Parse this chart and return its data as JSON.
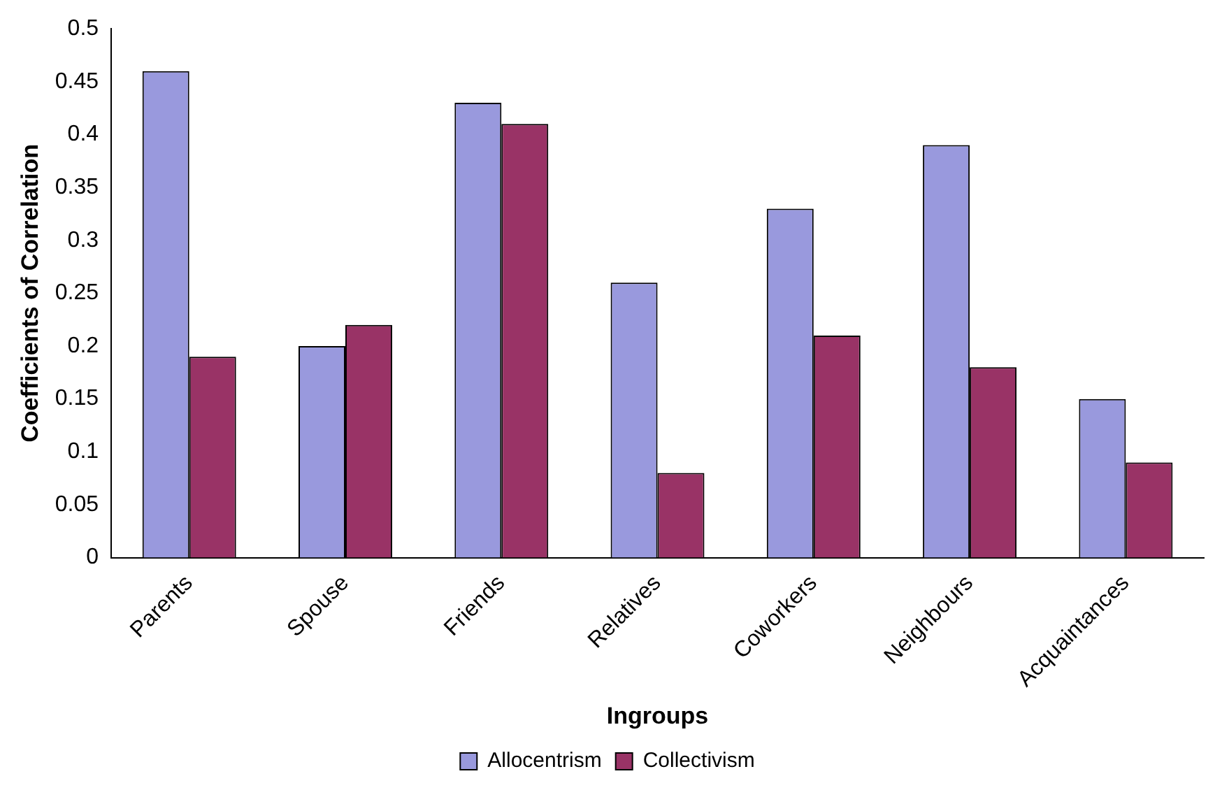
{
  "chart_data": {
    "type": "bar",
    "xlabel": "Ingroups",
    "ylabel": "Coefficients of Correlation",
    "categories": [
      "Parents",
      "Spouse",
      "Friends",
      "Relatives",
      "Coworkers",
      "Neighbours",
      "Acquaintances"
    ],
    "series": [
      {
        "name": "Allocentrism",
        "color": "#9999dd",
        "values": [
          0.46,
          0.2,
          0.43,
          0.26,
          0.33,
          0.39,
          0.15
        ]
      },
      {
        "name": "Collectivism",
        "color": "#993366",
        "values": [
          0.19,
          0.22,
          0.41,
          0.08,
          0.21,
          0.18,
          0.09
        ]
      }
    ],
    "ylim": [
      0,
      0.5
    ],
    "yticks": [
      0,
      0.05,
      0.1,
      0.15,
      0.2,
      0.25,
      0.3,
      0.35,
      0.4,
      0.45,
      0.5
    ],
    "grid": false,
    "legend": "bottom"
  }
}
